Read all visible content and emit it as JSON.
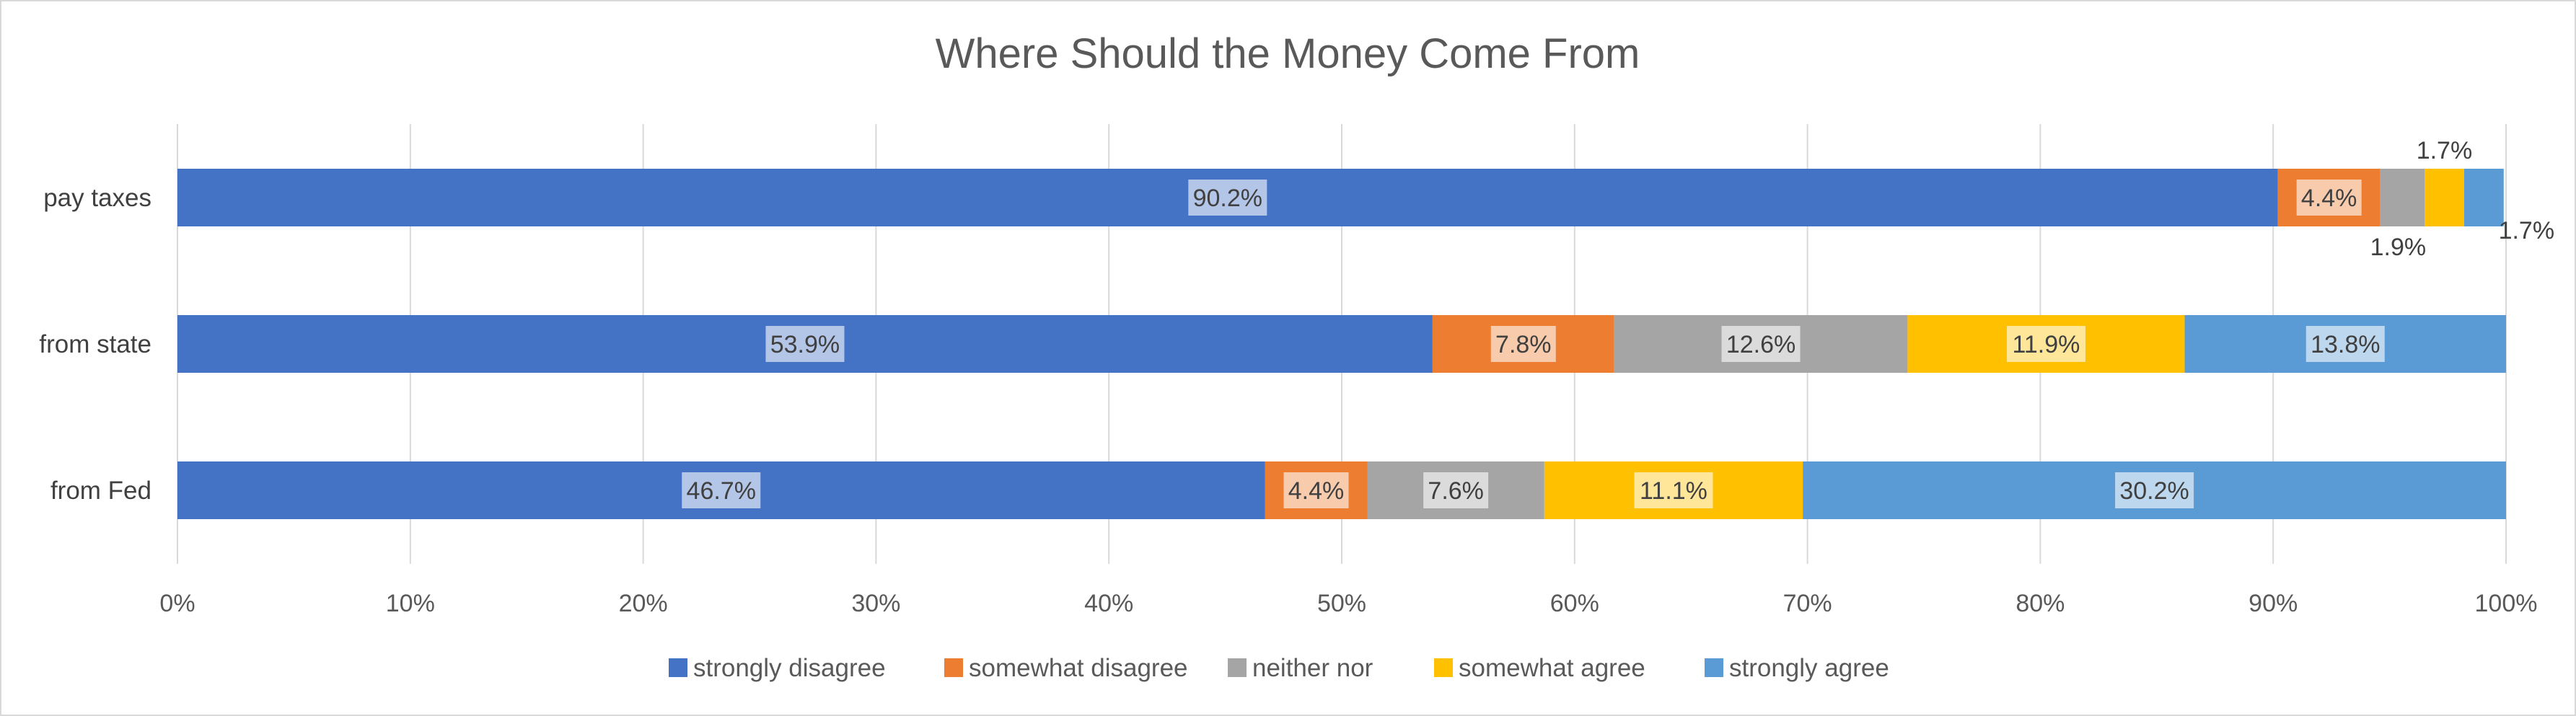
{
  "chart_data": {
    "type": "bar",
    "orientation": "horizontal",
    "stacking": "percent",
    "title": "Where Should the Money Come From",
    "categories": [
      "pay taxes",
      "from state",
      "from Fed"
    ],
    "x_axis": {
      "ticks": [
        "0%",
        "10%",
        "20%",
        "30%",
        "40%",
        "50%",
        "60%",
        "70%",
        "80%",
        "90%",
        "100%"
      ],
      "range": [
        0,
        100
      ],
      "grid": true
    },
    "series": [
      {
        "name": "strongly disagree",
        "color": "#4472c4",
        "values": [
          90.2,
          53.9,
          46.7
        ],
        "labels": [
          "90.2%",
          "53.9%",
          "46.7%"
        ]
      },
      {
        "name": "somewhat disagree",
        "color": "#ed7d31",
        "values": [
          4.4,
          7.8,
          4.4
        ],
        "labels": [
          "4.4%",
          "7.8%",
          "4.4%"
        ]
      },
      {
        "name": "neither nor",
        "color": "#a5a5a5",
        "values": [
          1.9,
          12.6,
          7.6
        ],
        "labels": [
          "1.9%",
          "12.6%",
          "7.6%"
        ]
      },
      {
        "name": "somewhat agree",
        "color": "#ffc000",
        "values": [
          1.7,
          11.9,
          11.1
        ],
        "labels": [
          "1.7%",
          "11.9%",
          "11.1%"
        ]
      },
      {
        "name": "strongly agree",
        "color": "#5b9bd5",
        "values": [
          1.7,
          13.8,
          30.2
        ],
        "labels": [
          "1.7%",
          "13.8%",
          "30.2%"
        ]
      }
    ],
    "legend_position": "bottom"
  }
}
